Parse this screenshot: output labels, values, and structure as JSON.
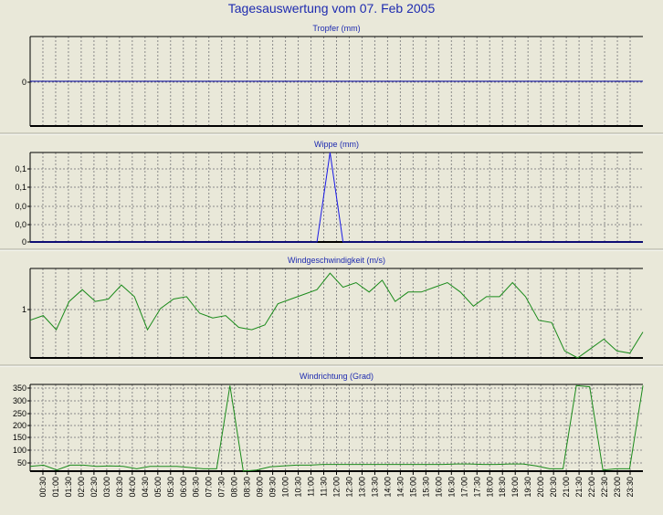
{
  "page": {
    "title": "Tagesauswertung vom 07. Feb 2005",
    "title_color": "#1e2bb0",
    "background": "#e9e8d9"
  },
  "chart_data": [
    {
      "type": "line",
      "title": "Tropfer (mm)",
      "y_ticks": [
        "0"
      ],
      "ylim": [
        -1,
        1
      ],
      "grid": true,
      "series": [
        {
          "color": "#0000a0",
          "values": [
            0,
            0,
            0,
            0,
            0,
            0,
            0,
            0,
            0,
            0,
            0,
            0,
            0,
            0,
            0,
            0,
            0,
            0,
            0,
            0,
            0,
            0,
            0,
            0,
            0,
            0,
            0,
            0,
            0,
            0,
            0,
            0,
            0,
            0,
            0,
            0,
            0,
            0,
            0,
            0,
            0,
            0,
            0,
            0,
            0,
            0,
            0,
            0
          ]
        }
      ]
    },
    {
      "type": "line",
      "title": "Wippe (mm)",
      "y_ticks": [
        "0",
        "0,0",
        "0,0",
        "0,1",
        "0,1"
      ],
      "ylim": [
        0,
        0.1
      ],
      "grid": true,
      "series": [
        {
          "color": "#1a1ae6",
          "values": [
            0,
            0,
            0,
            0,
            0,
            0,
            0,
            0,
            0,
            0,
            0,
            0,
            0,
            0,
            0,
            0,
            0,
            0,
            0,
            0,
            0,
            0,
            0,
            0.1,
            0,
            0,
            0,
            0,
            0,
            0,
            0,
            0,
            0,
            0,
            0,
            0,
            0,
            0,
            0,
            0,
            0,
            0,
            0,
            0,
            0,
            0,
            0,
            0
          ]
        }
      ]
    },
    {
      "type": "line",
      "title": "Windgeschwindigkeit (m/s)",
      "y_ticks": [
        "1"
      ],
      "ylim": [
        0,
        1.9
      ],
      "grid": true,
      "series": [
        {
          "color": "#1a8a1a",
          "values": [
            0.8,
            0.9,
            0.6,
            1.2,
            1.45,
            1.2,
            1.25,
            1.55,
            1.3,
            0.6,
            1.05,
            1.25,
            1.3,
            0.95,
            0.85,
            0.9,
            0.65,
            0.6,
            0.7,
            1.15,
            1.25,
            1.35,
            1.45,
            1.8,
            1.5,
            1.6,
            1.4,
            1.65,
            1.2,
            1.4,
            1.4,
            1.5,
            1.6,
            1.4,
            1.1,
            1.3,
            1.3,
            1.6,
            1.3,
            0.8,
            0.75,
            0.15,
            0.0,
            0.2,
            0.4,
            0.15,
            0.1,
            0.55
          ]
        }
      ]
    },
    {
      "type": "line",
      "title": "Windrichtung (Grad)",
      "xlabel": "",
      "y_ticks": [
        "50",
        "100",
        "150",
        "200",
        "250",
        "300",
        "350"
      ],
      "ylim": [
        0,
        360
      ],
      "grid": true,
      "x_ticks": [
        "00:30",
        "01:00",
        "01:30",
        "02:00",
        "02:30",
        "03:00",
        "03:30",
        "04:00",
        "04:30",
        "05:00",
        "05:30",
        "06:00",
        "06:30",
        "07:00",
        "07:30",
        "08:00",
        "08:30",
        "09:00",
        "09:30",
        "10:00",
        "10:30",
        "11:00",
        "11:30",
        "12:00",
        "12:30",
        "13:00",
        "13:30",
        "14:00",
        "14:30",
        "15:00",
        "15:30",
        "16:00",
        "16:30",
        "17:00",
        "17:30",
        "18:00",
        "18:30",
        "19:00",
        "19:30",
        "20:00",
        "20:30",
        "21:00",
        "21:30",
        "22:00",
        "22:30",
        "23:00",
        "23:30"
      ],
      "series": [
        {
          "color": "#1a8a1a",
          "values": [
            20,
            25,
            5,
            25,
            25,
            20,
            22,
            20,
            10,
            20,
            20,
            20,
            15,
            10,
            10,
            355,
            0,
            5,
            18,
            22,
            25,
            25,
            28,
            28,
            28,
            28,
            28,
            28,
            28,
            28,
            28,
            28,
            30,
            30,
            28,
            28,
            30,
            30,
            22,
            10,
            10,
            355,
            350,
            5,
            10,
            10,
            355
          ]
        }
      ]
    }
  ]
}
